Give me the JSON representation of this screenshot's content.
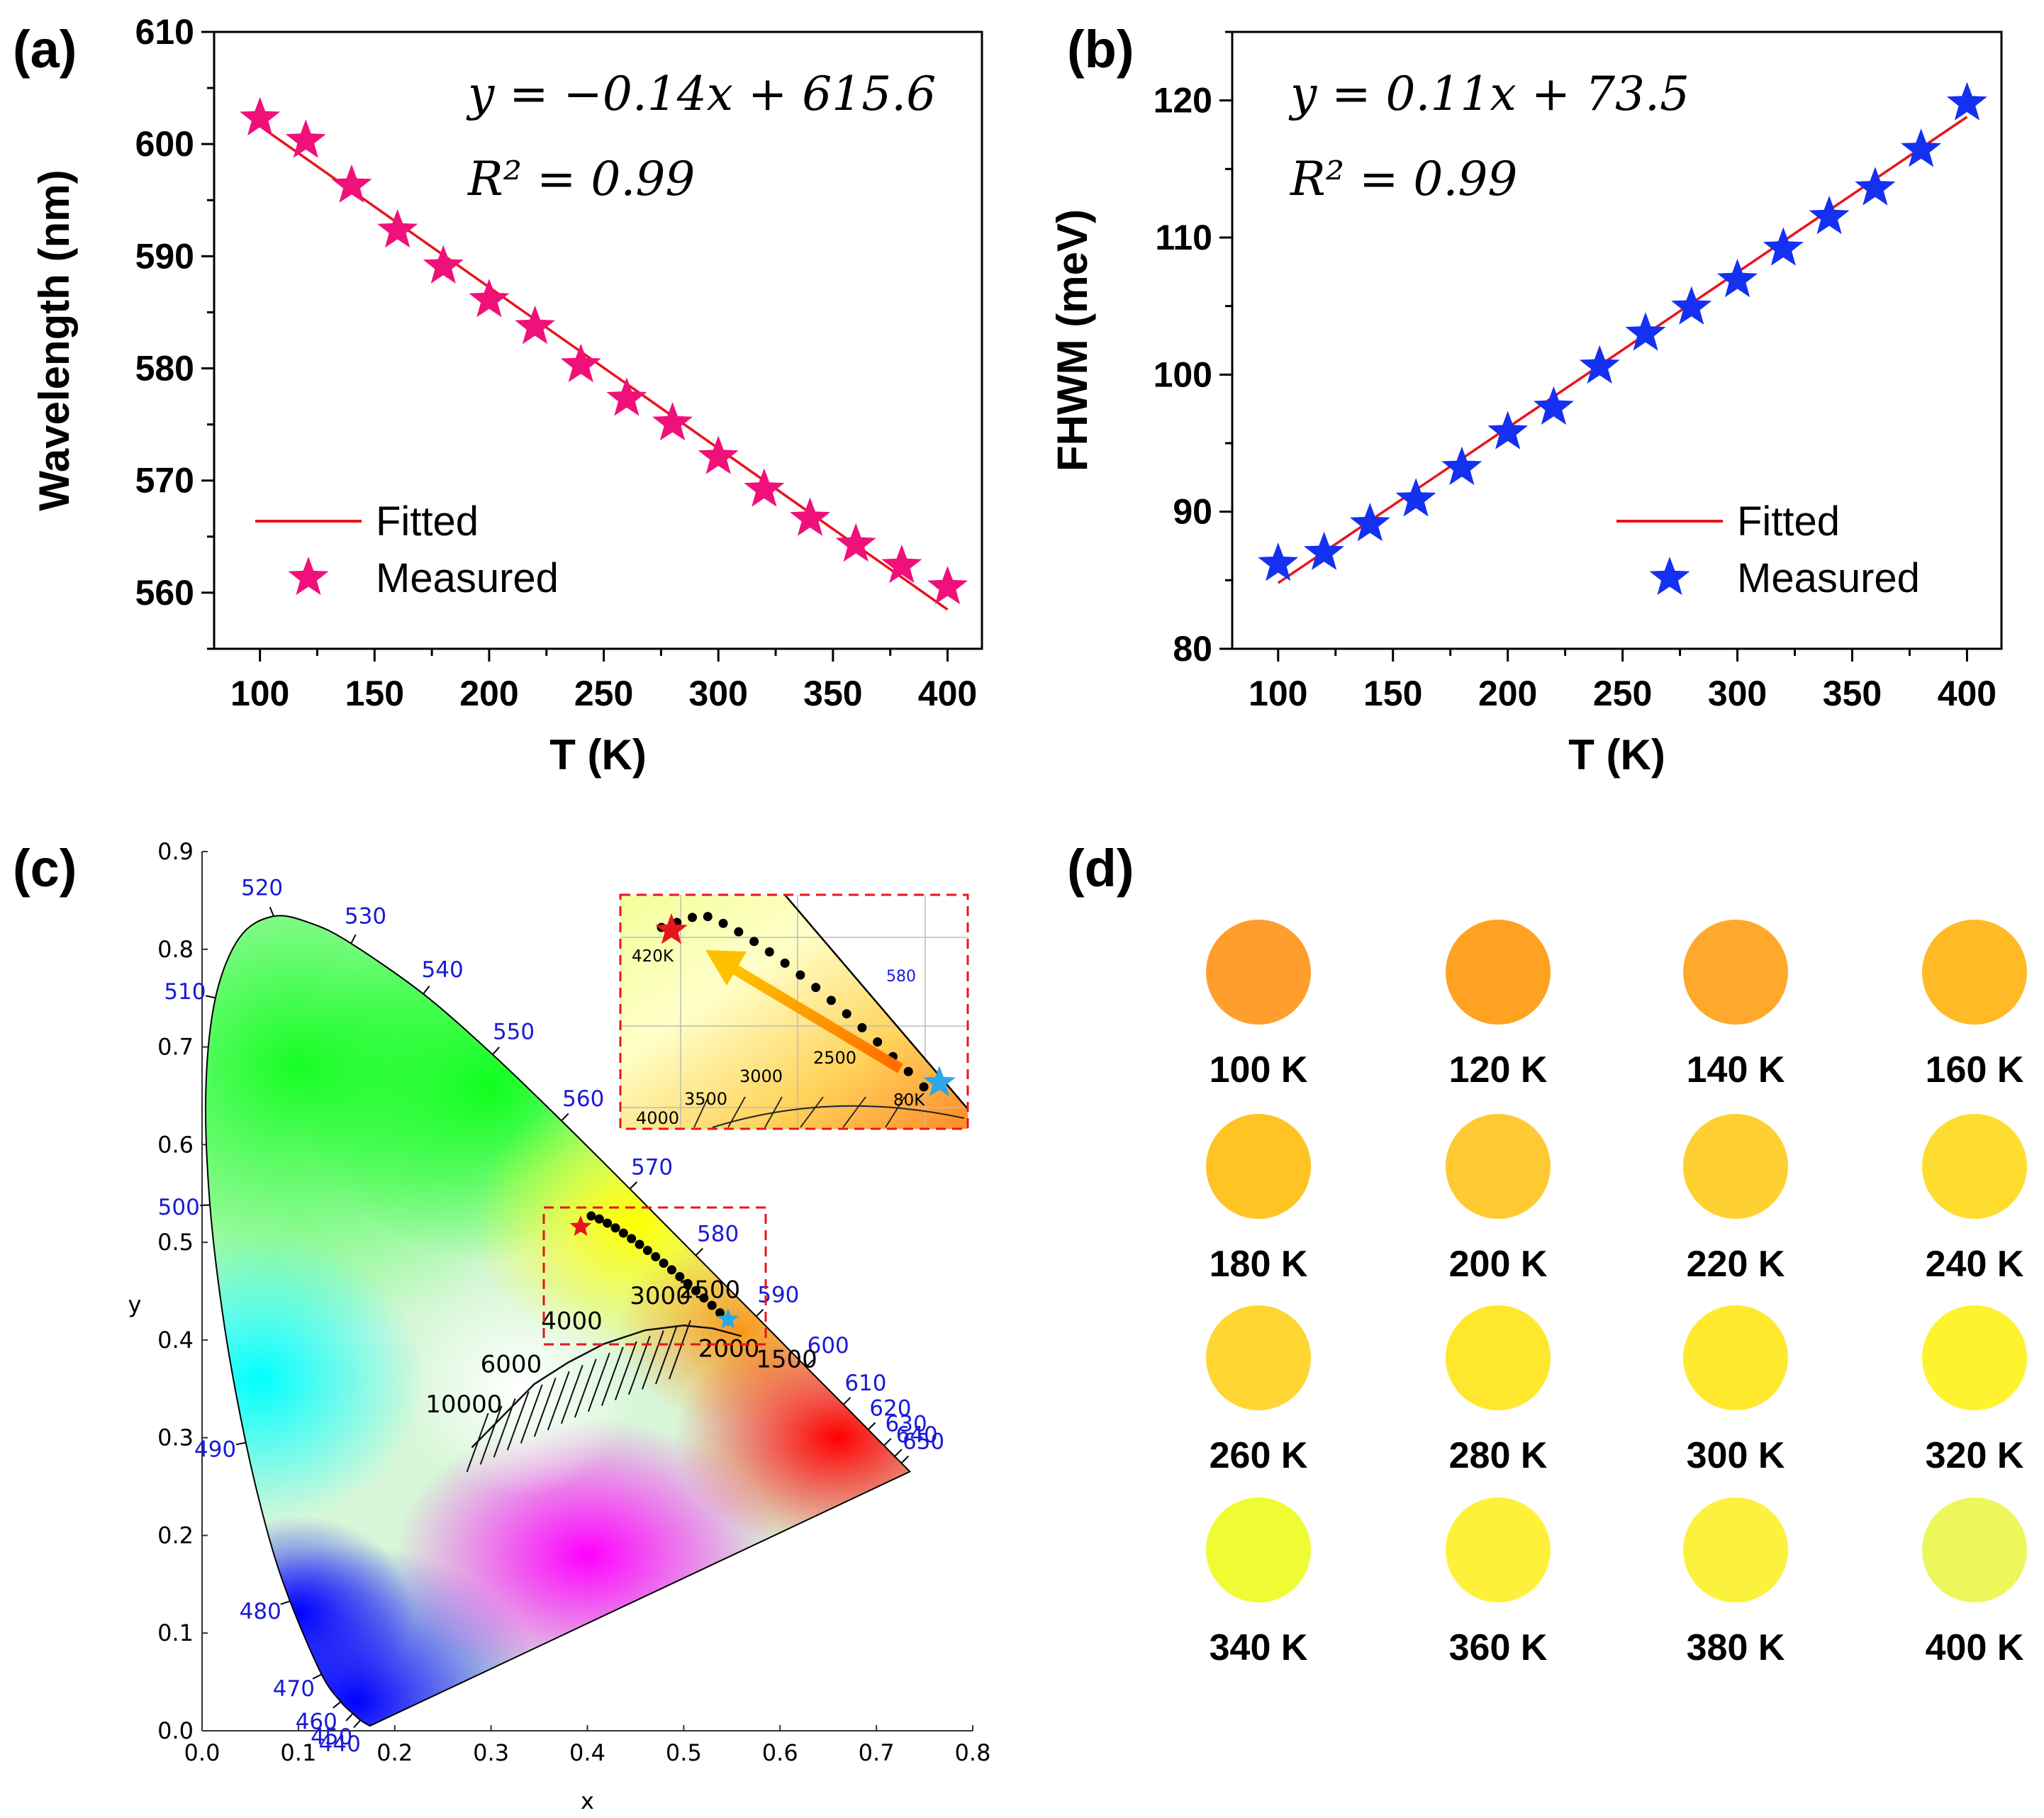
{
  "panels": {
    "a": {
      "label": "(a)"
    },
    "b": {
      "label": "(b)"
    },
    "c": {
      "label": "(c)"
    },
    "d": {
      "label": "(d)"
    }
  },
  "chart_data": [
    {
      "id": "a",
      "type": "scatter",
      "title": "",
      "xlabel": "T (K)",
      "ylabel": "Wavelength (nm)",
      "xlim": [
        80,
        415
      ],
      "ylim": [
        555,
        610
      ],
      "xticks": [
        100,
        150,
        200,
        250,
        300,
        350,
        400
      ],
      "yticks": [
        560,
        570,
        580,
        590,
        600,
        610
      ],
      "equation": "y = −0.14x + 615.6",
      "r2": "R² = 0.99",
      "legend": {
        "fitted": "Fitted",
        "measured": "Measured"
      },
      "marker_color": "#f0107a",
      "fit_color": "#e8141b",
      "fit": {
        "x": [
          100,
          400
        ],
        "y": [
          601.6,
          558.5
        ]
      },
      "series": [
        {
          "name": "Measured",
          "x": [
            100,
            120,
            140,
            160,
            180,
            200,
            220,
            240,
            260,
            280,
            300,
            320,
            340,
            360,
            380,
            400
          ],
          "y": [
            602.3,
            600.3,
            596.3,
            592.3,
            589.1,
            586.1,
            583.7,
            580.3,
            577.3,
            575.1,
            572.1,
            569.2,
            566.6,
            564.3,
            562.4,
            560.5
          ]
        }
      ]
    },
    {
      "id": "b",
      "type": "scatter",
      "title": "",
      "xlabel": "T (K)",
      "ylabel": "FHWM (meV)",
      "xlim": [
        80,
        415
      ],
      "ylim": [
        80,
        125
      ],
      "xticks": [
        100,
        150,
        200,
        250,
        300,
        350,
        400
      ],
      "yticks": [
        80,
        90,
        100,
        110,
        120
      ],
      "equation": "y = 0.11x + 73.5",
      "r2": "R² = 0.99",
      "legend": {
        "fitted": "Fitted",
        "measured": "Measured"
      },
      "marker_color": "#1430f0",
      "fit_color": "#e8141b",
      "fit": {
        "x": [
          100,
          400
        ],
        "y": [
          84.8,
          118.8
        ]
      },
      "series": [
        {
          "name": "Measured",
          "x": [
            100,
            120,
            140,
            160,
            180,
            200,
            220,
            240,
            260,
            280,
            300,
            320,
            340,
            360,
            380,
            400
          ],
          "y": [
            86.2,
            87.0,
            89.1,
            90.9,
            93.2,
            95.8,
            97.6,
            100.6,
            103.0,
            104.9,
            106.9,
            109.2,
            111.5,
            113.6,
            116.4,
            119.8
          ]
        }
      ]
    },
    {
      "id": "c",
      "type": "scatter",
      "title": "",
      "xlabel": "x",
      "ylabel": "y",
      "xlim": [
        0.0,
        0.8
      ],
      "ylim": [
        0.0,
        0.9
      ],
      "xticks": [
        "0.0",
        "0.1",
        "0.2",
        "0.3",
        "0.4",
        "0.5",
        "0.6",
        "0.7",
        "0.8"
      ],
      "yticks": [
        "0.0",
        "0.1",
        "0.2",
        "0.3",
        "0.4",
        "0.5",
        "0.6",
        "0.7",
        "0.8",
        "0.9"
      ],
      "locus": [
        {
          "nm": "440",
          "x": 0.1644,
          "y": 0.0109
        },
        {
          "nm": "450",
          "x": 0.1566,
          "y": 0.0177
        },
        {
          "nm": "460",
          "x": 0.144,
          "y": 0.0297
        },
        {
          "nm": "470",
          "x": 0.1241,
          "y": 0.0578
        },
        {
          "nm": "480",
          "x": 0.0913,
          "y": 0.1327
        },
        {
          "nm": "490",
          "x": 0.0454,
          "y": 0.295
        },
        {
          "nm": "500",
          "x": 0.0082,
          "y": 0.5384
        },
        {
          "nm": "510",
          "x": 0.0139,
          "y": 0.7502
        },
        {
          "nm": "520",
          "x": 0.0743,
          "y": 0.8338
        },
        {
          "nm": "530",
          "x": 0.1547,
          "y": 0.8059
        },
        {
          "nm": "540",
          "x": 0.2296,
          "y": 0.7543
        },
        {
          "nm": "550",
          "x": 0.3016,
          "y": 0.6923
        },
        {
          "nm": "560",
          "x": 0.3731,
          "y": 0.6245
        },
        {
          "nm": "570",
          "x": 0.4441,
          "y": 0.5547
        },
        {
          "nm": "580",
          "x": 0.5125,
          "y": 0.4866
        },
        {
          "nm": "590",
          "x": 0.5752,
          "y": 0.4242
        },
        {
          "nm": "600",
          "x": 0.627,
          "y": 0.3725
        },
        {
          "nm": "610",
          "x": 0.6658,
          "y": 0.334
        },
        {
          "nm": "620",
          "x": 0.6915,
          "y": 0.3083
        },
        {
          "nm": "630",
          "x": 0.7079,
          "y": 0.292
        },
        {
          "nm": "640",
          "x": 0.719,
          "y": 0.2809
        },
        {
          "nm": "650",
          "x": 0.726,
          "y": 0.274
        }
      ],
      "planck_labels": [
        "10000",
        "6000",
        "4000",
        "3000",
        "2500",
        "2000",
        "1500"
      ],
      "inset_labels": {
        "start": "420K",
        "end": "80K",
        "wl": "580",
        "cct": [
          "4000",
          "3500",
          "3000",
          "2500"
        ]
      },
      "trajectory_start": {
        "x": 0.393,
        "y": 0.516
      },
      "trajectory_end": {
        "x": 0.546,
        "y": 0.421
      }
    }
  ],
  "swatches": [
    {
      "label": "100 K",
      "color": "#ff9e2c"
    },
    {
      "label": "120 K",
      "color": "#ffa222"
    },
    {
      "label": "140 K",
      "color": "#ffa92c"
    },
    {
      "label": "160 K",
      "color": "#ffba26"
    },
    {
      "label": "180 K",
      "color": "#ffc323"
    },
    {
      "label": "200 K",
      "color": "#ffc932"
    },
    {
      "label": "220 K",
      "color": "#ffd032"
    },
    {
      "label": "240 K",
      "color": "#ffdd2e"
    },
    {
      "label": "260 K",
      "color": "#ffd632"
    },
    {
      "label": "280 K",
      "color": "#ffe72e"
    },
    {
      "label": "300 K",
      "color": "#ffe92e"
    },
    {
      "label": "320 K",
      "color": "#fff22e"
    },
    {
      "label": "340 K",
      "color": "#effc34"
    },
    {
      "label": "360 K",
      "color": "#fff139"
    },
    {
      "label": "380 K",
      "color": "#fcf13c"
    },
    {
      "label": "400 K",
      "color": "#ecf75c"
    }
  ]
}
